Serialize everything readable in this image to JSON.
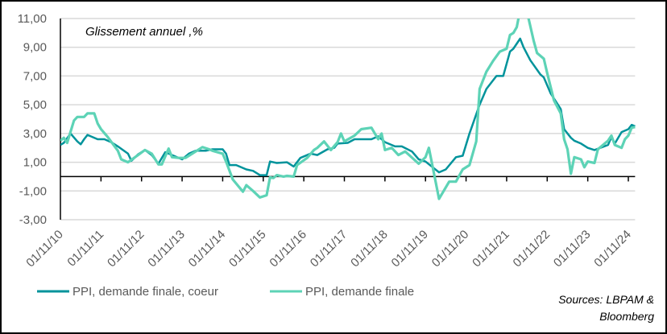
{
  "chart_data": {
    "type": "line",
    "annotation": "Glissement annuel ,%",
    "source": [
      "Sources: LBPAM &",
      "Bloomberg"
    ],
    "ylim": [
      -3,
      11
    ],
    "yticks": [
      -3,
      -1,
      1,
      3,
      5,
      7,
      9,
      11
    ],
    "ytick_labels": [
      "-3,00",
      "-1,00",
      "1,00",
      "3,00",
      "5,00",
      "7,00",
      "9,00",
      "11,00"
    ],
    "xlim": [
      "2010-11",
      "2025-01"
    ],
    "xticks": [
      "2010-11",
      "2011-11",
      "2012-11",
      "2013-11",
      "2014-11",
      "2015-11",
      "2016-11",
      "2017-11",
      "2018-11",
      "2019-11",
      "2020-11",
      "2021-11",
      "2022-11",
      "2023-11",
      "2024-11"
    ],
    "xtick_labels": [
      "01/11/10",
      "01/11/11",
      "01/11/12",
      "01/11/13",
      "01/11/14",
      "01/11/15",
      "01/11/16",
      "01/11/17",
      "01/11/18",
      "01/11/19",
      "01/11/20",
      "01/11/21",
      "01/11/22",
      "01/11/23",
      "01/11/24"
    ],
    "grid": true,
    "legend_position": "bottom-left",
    "series": [
      {
        "name": "PPI, demande finale, coeur",
        "color": "#00939B",
        "points": [
          [
            "2010-11",
            2.2
          ],
          [
            "2010-12",
            2.35
          ],
          [
            "2011-02",
            3.0
          ],
          [
            "2011-04",
            2.45
          ],
          [
            "2011-05",
            2.25
          ],
          [
            "2011-06",
            2.6
          ],
          [
            "2011-07",
            2.9
          ],
          [
            "2011-10",
            2.6
          ],
          [
            "2011-12",
            2.6
          ],
          [
            "2012-02",
            2.4
          ],
          [
            "2012-04",
            2.1
          ],
          [
            "2012-07",
            1.6
          ],
          [
            "2012-08",
            1.1
          ],
          [
            "2012-10",
            1.55
          ],
          [
            "2012-12",
            1.85
          ],
          [
            "2013-02",
            1.5
          ],
          [
            "2013-04",
            0.9
          ],
          [
            "2013-06",
            1.7
          ],
          [
            "2013-08",
            1.5
          ],
          [
            "2013-11",
            1.2
          ],
          [
            "2014-01",
            1.6
          ],
          [
            "2014-03",
            1.8
          ],
          [
            "2014-06",
            1.8
          ],
          [
            "2014-08",
            1.9
          ],
          [
            "2014-11",
            1.9
          ],
          [
            "2014-12",
            1.6
          ],
          [
            "2015-01",
            0.8
          ],
          [
            "2015-03",
            0.8
          ],
          [
            "2015-06",
            0.5
          ],
          [
            "2015-08",
            0.4
          ],
          [
            "2015-10",
            0.1
          ],
          [
            "2015-12",
            0.1
          ],
          [
            "2016-01",
            1.05
          ],
          [
            "2016-03",
            0.95
          ],
          [
            "2016-06",
            1.0
          ],
          [
            "2016-08",
            0.7
          ],
          [
            "2016-10",
            1.3
          ],
          [
            "2017-01",
            1.6
          ],
          [
            "2017-03",
            1.5
          ],
          [
            "2017-06",
            1.9
          ],
          [
            "2017-08",
            2.0
          ],
          [
            "2017-09",
            2.3
          ],
          [
            "2017-12",
            2.35
          ],
          [
            "2018-02",
            2.6
          ],
          [
            "2018-04",
            2.6
          ],
          [
            "2018-07",
            2.6
          ],
          [
            "2018-09",
            2.8
          ],
          [
            "2018-11",
            2.4
          ],
          [
            "2019-02",
            2.1
          ],
          [
            "2019-04",
            2.1
          ],
          [
            "2019-07",
            1.75
          ],
          [
            "2019-09",
            1.2
          ],
          [
            "2019-11",
            1.05
          ],
          [
            "2020-03",
            0.3
          ],
          [
            "2020-05",
            0.5
          ],
          [
            "2020-08",
            1.35
          ],
          [
            "2020-10",
            1.45
          ],
          [
            "2020-12",
            3.0
          ],
          [
            "2021-03",
            5.0
          ],
          [
            "2021-05",
            6.1
          ],
          [
            "2021-08",
            7.0
          ],
          [
            "2021-10",
            7.0
          ],
          [
            "2021-12",
            8.7
          ],
          [
            "2022-01",
            8.9
          ],
          [
            "2022-03",
            9.6
          ],
          [
            "2022-04",
            9.0
          ],
          [
            "2022-06",
            8.1
          ],
          [
            "2022-09",
            7.1
          ],
          [
            "2022-10",
            6.9
          ],
          [
            "2022-12",
            5.8
          ],
          [
            "2023-03",
            4.7
          ],
          [
            "2023-04",
            3.3
          ],
          [
            "2023-06",
            2.7
          ],
          [
            "2023-07",
            2.5
          ],
          [
            "2023-09",
            2.3
          ],
          [
            "2023-11",
            2.0
          ],
          [
            "2024-01",
            1.85
          ],
          [
            "2024-05",
            2.2
          ],
          [
            "2024-06",
            2.75
          ],
          [
            "2024-07",
            2.3
          ],
          [
            "2024-09",
            3.1
          ],
          [
            "2024-11",
            3.3
          ],
          [
            "2024-12",
            3.6
          ],
          [
            "2025-01",
            3.5
          ]
        ]
      },
      {
        "name": "PPI, demande finale",
        "color": "#5DD3B6",
        "points": [
          [
            "2010-11",
            2.5
          ],
          [
            "2010-12",
            2.7
          ],
          [
            "2011-01",
            2.35
          ],
          [
            "2011-03",
            3.9
          ],
          [
            "2011-04",
            4.15
          ],
          [
            "2011-06",
            4.15
          ],
          [
            "2011-07",
            4.4
          ],
          [
            "2011-09",
            4.4
          ],
          [
            "2011-10",
            3.7
          ],
          [
            "2011-11",
            3.3
          ],
          [
            "2012-01",
            2.75
          ],
          [
            "2012-04",
            1.8
          ],
          [
            "2012-05",
            1.2
          ],
          [
            "2012-07",
            1.0
          ],
          [
            "2012-10",
            1.5
          ],
          [
            "2012-12",
            1.85
          ],
          [
            "2013-02",
            1.6
          ],
          [
            "2013-04",
            0.85
          ],
          [
            "2013-05",
            0.85
          ],
          [
            "2013-07",
            1.95
          ],
          [
            "2013-08",
            1.35
          ],
          [
            "2013-10",
            1.3
          ],
          [
            "2013-12",
            1.3
          ],
          [
            "2014-02",
            1.6
          ],
          [
            "2014-05",
            2.05
          ],
          [
            "2014-07",
            1.9
          ],
          [
            "2014-08",
            1.8
          ],
          [
            "2014-11",
            1.6
          ],
          [
            "2014-12",
            1.05
          ],
          [
            "2015-02",
            -0.2
          ],
          [
            "2015-05",
            -1.05
          ],
          [
            "2015-06",
            -0.6
          ],
          [
            "2015-08",
            -1.0
          ],
          [
            "2015-10",
            -1.45
          ],
          [
            "2015-12",
            -1.3
          ],
          [
            "2016-01",
            -0.05
          ],
          [
            "2016-02",
            -0.1
          ],
          [
            "2016-03",
            0.1
          ],
          [
            "2016-05",
            0.0
          ],
          [
            "2016-06",
            0.05
          ],
          [
            "2016-08",
            0.0
          ],
          [
            "2016-09",
            0.8
          ],
          [
            "2016-12",
            1.3
          ],
          [
            "2017-02",
            1.85
          ],
          [
            "2017-03",
            2.0
          ],
          [
            "2017-05",
            2.45
          ],
          [
            "2017-07",
            1.85
          ],
          [
            "2017-09",
            2.4
          ],
          [
            "2017-10",
            3.0
          ],
          [
            "2017-11",
            2.45
          ],
          [
            "2018-02",
            2.85
          ],
          [
            "2018-04",
            3.3
          ],
          [
            "2018-07",
            3.4
          ],
          [
            "2018-09",
            2.6
          ],
          [
            "2018-10",
            3.0
          ],
          [
            "2018-11",
            1.85
          ],
          [
            "2019-01",
            2.0
          ],
          [
            "2019-03",
            1.5
          ],
          [
            "2019-05",
            1.75
          ],
          [
            "2019-09",
            0.9
          ],
          [
            "2019-11",
            1.35
          ],
          [
            "2019-12",
            2.0
          ],
          [
            "2020-03",
            -1.55
          ],
          [
            "2020-06",
            -0.35
          ],
          [
            "2020-08",
            -0.35
          ],
          [
            "2020-10",
            0.5
          ],
          [
            "2020-12",
            0.8
          ],
          [
            "2021-02",
            2.45
          ],
          [
            "2021-03",
            6.1
          ],
          [
            "2021-05",
            7.3
          ],
          [
            "2021-07",
            8.05
          ],
          [
            "2021-09",
            8.7
          ],
          [
            "2021-11",
            8.9
          ],
          [
            "2021-12",
            9.85
          ],
          [
            "2022-01",
            10.0
          ],
          [
            "2022-02",
            10.4
          ],
          [
            "2022-03",
            11.6
          ],
          [
            "2022-05",
            11.5
          ],
          [
            "2022-07",
            9.45
          ],
          [
            "2022-08",
            8.6
          ],
          [
            "2022-10",
            8.2
          ],
          [
            "2022-11",
            7.2
          ],
          [
            "2023-01",
            5.3
          ],
          [
            "2023-03",
            4.4
          ],
          [
            "2023-04",
            2.6
          ],
          [
            "2023-05",
            1.9
          ],
          [
            "2023-06",
            0.2
          ],
          [
            "2023-07",
            1.35
          ],
          [
            "2023-09",
            1.2
          ],
          [
            "2023-10",
            0.65
          ],
          [
            "2023-11",
            1.05
          ],
          [
            "2024-01",
            0.95
          ],
          [
            "2024-02",
            1.9
          ],
          [
            "2024-05",
            2.5
          ],
          [
            "2024-06",
            2.85
          ],
          [
            "2024-07",
            2.2
          ],
          [
            "2024-09",
            2.0
          ],
          [
            "2024-10",
            2.6
          ],
          [
            "2024-11",
            2.85
          ],
          [
            "2024-12",
            3.4
          ],
          [
            "2025-01",
            3.45
          ]
        ]
      }
    ]
  }
}
